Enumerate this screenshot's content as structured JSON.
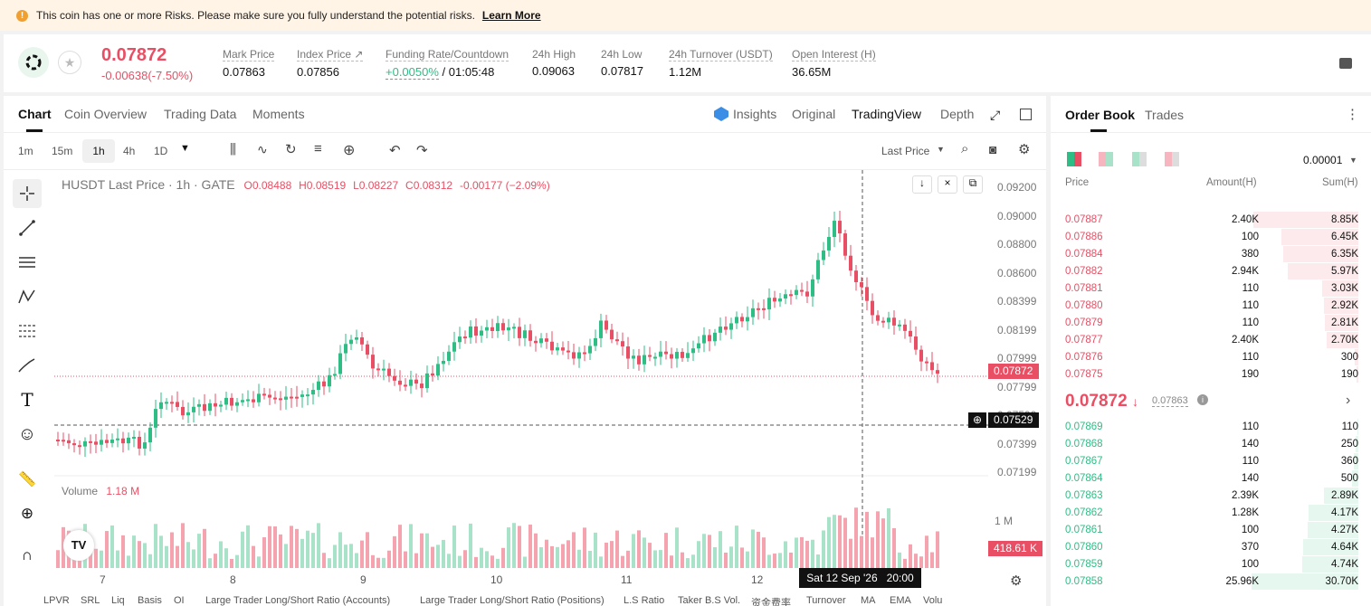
{
  "banner": {
    "text": "This coin has one or more Risks. Please make sure you fully understand the potential risks.",
    "link": "Learn More"
  },
  "ticker": {
    "price": "0.07872",
    "change": "-0.00638(-7.50%)",
    "stats": [
      {
        "label": "Mark Price",
        "value": "0.07863"
      },
      {
        "label": "Index Price ↗",
        "value": "0.07856"
      },
      {
        "label": "Funding Rate/Countdown",
        "value_a": "+0.0050%",
        "value_b": "/ 01:05:48"
      },
      {
        "label": "24h High",
        "value": "0.09063"
      },
      {
        "label": "24h Low",
        "value": "0.07817"
      },
      {
        "label": "24h Turnover (USDT)",
        "value": "1.12M"
      },
      {
        "label": "Open Interest (H)",
        "value": "36.65M"
      }
    ]
  },
  "tabs": {
    "chart": "Chart",
    "coin": "Coin Overview",
    "trading": "Trading Data",
    "moments": "Moments",
    "insights": "Insights",
    "original": "Original",
    "tv": "TradingView",
    "depth": "Depth"
  },
  "toolbar": {
    "i1": "1m",
    "i2": "15m",
    "i3": "1h",
    "i4": "4h",
    "i5": "1D",
    "last": "Last Price"
  },
  "legend": {
    "symbol": "HUSDT Last Price · 1h · GATE",
    "o": "O0.08488",
    "h": "H0.08519",
    "l": "L0.08227",
    "c": "C0.08312",
    "chg": "-0.00177 (−2.09%)"
  },
  "yaxis": [
    "0.09200",
    "0.09000",
    "0.08800",
    "0.08600",
    "0.08399",
    "0.08199",
    "0.07999",
    "0.07799",
    "0.07599",
    "0.07399",
    "0.07199"
  ],
  "price_tag": "0.07872",
  "cross_tag": "0.07529",
  "volume": {
    "label": "Volume",
    "value": "1.18 M",
    "axis": "1 M",
    "tag": "418.61 K"
  },
  "xaxis": [
    "7",
    "8",
    "9",
    "10",
    "11",
    "12"
  ],
  "cross_time": "Sat 12 Sep '26   20:00",
  "bottom": [
    "LPVR",
    "SRL",
    "Liq",
    "Basis",
    "OI",
    "Large Trader Long/Short Ratio (Accounts)",
    "Large Trader Long/Short Ratio (Positions)",
    "L.S Ratio",
    "Taker B.S Vol.",
    "资金费率",
    "Turnover",
    "MA",
    "EMA",
    "Volu"
  ],
  "orderbook": {
    "tab1": "Order Book",
    "tab2": "Trades",
    "precision": "0.00001",
    "h_price": "Price",
    "h_amount": "Amount(H)",
    "h_sum": "Sum(H)",
    "asks": [
      [
        "0.07887",
        "2.40K",
        "8.85K"
      ],
      [
        "0.07886",
        "100",
        "6.45K"
      ],
      [
        "0.07884",
        "380",
        "6.35K"
      ],
      [
        "0.07882",
        "2.94K",
        "5.97K"
      ],
      [
        "0.07881",
        "110",
        "3.03K"
      ],
      [
        "0.07880",
        "110",
        "2.92K"
      ],
      [
        "0.07879",
        "110",
        "2.81K"
      ],
      [
        "0.07877",
        "2.40K",
        "2.70K"
      ],
      [
        "0.07876",
        "110",
        "300"
      ],
      [
        "0.07875",
        "190",
        "190"
      ]
    ],
    "mid": "0.07872",
    "mid_mark": "0.07863",
    "bids": [
      [
        "0.07869",
        "110",
        "110"
      ],
      [
        "0.07868",
        "140",
        "250"
      ],
      [
        "0.07867",
        "110",
        "360"
      ],
      [
        "0.07864",
        "140",
        "500"
      ],
      [
        "0.07863",
        "2.39K",
        "2.89K"
      ],
      [
        "0.07862",
        "1.28K",
        "4.17K"
      ],
      [
        "0.07861",
        "100",
        "4.27K"
      ],
      [
        "0.07860",
        "370",
        "4.64K"
      ],
      [
        "0.07859",
        "100",
        "4.74K"
      ],
      [
        "0.07858",
        "25.96K",
        "30.70K"
      ]
    ]
  },
  "colors": {
    "up": "#2ebd85",
    "down": "#e84f64"
  }
}
